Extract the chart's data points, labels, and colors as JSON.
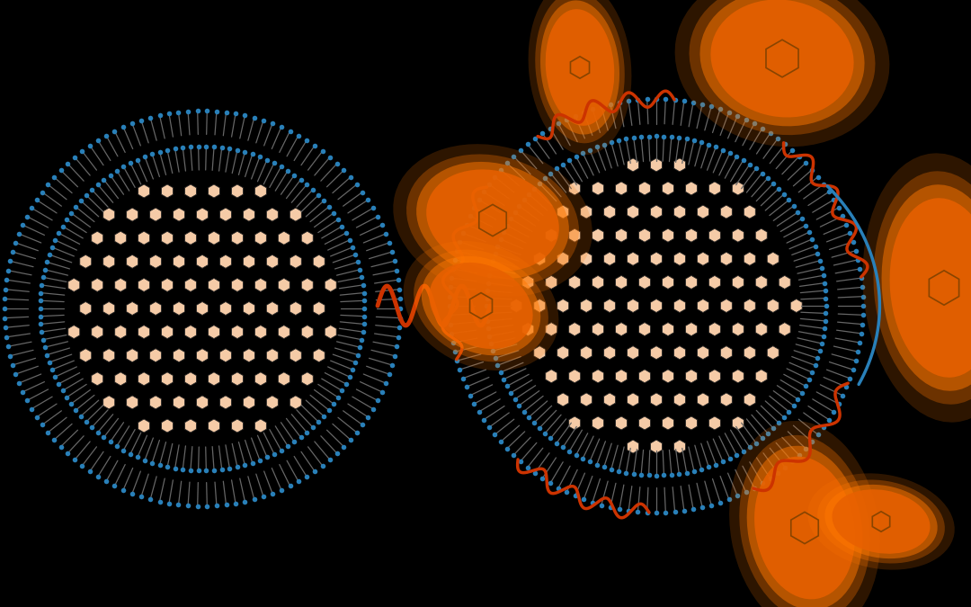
{
  "background_color": "#000000",
  "fig_width": 10.8,
  "fig_height": 6.75,
  "membrane_blue": "#2980b9",
  "lipid_tail_color": "#666666",
  "hexagon_fill": "#f5cba7",
  "hexagon_edge": "#222222",
  "peptide_color": "#cc3300",
  "arrow_color": "#2980b9",
  "orange_color": "#e86000",
  "orange_glow": "#ff7700",
  "orange_dark": "#cc4400",
  "blob_hex_edge": "#884400"
}
